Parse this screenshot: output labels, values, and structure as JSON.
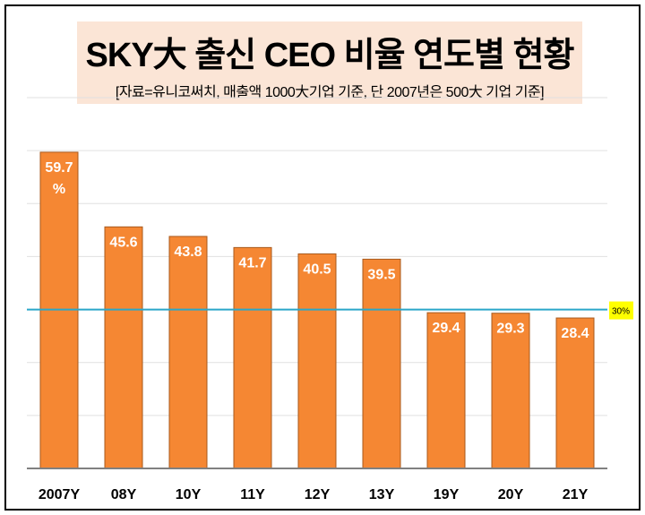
{
  "chart_data": {
    "type": "bar",
    "title": "SKY大 출신 CEO 비율 연도별 현황",
    "subtitle": "[자료=유니코써치, 매출액 1000大기업  기준, 단 2007년은 500大 기업 기준]",
    "categories": [
      "2007Y",
      "08Y",
      "10Y",
      "11Y",
      "12Y",
      "13Y",
      "19Y",
      "20Y",
      "21Y"
    ],
    "values": [
      59.7,
      45.6,
      43.8,
      41.7,
      40.5,
      39.5,
      29.4,
      29.3,
      28.4
    ],
    "data_labels": [
      "59.7 %",
      "45.6",
      "43.8",
      "41.7",
      "40.5",
      "39.5",
      "29.4",
      "29.3",
      "28.4"
    ],
    "ylim": [
      0,
      70
    ],
    "grid": true,
    "reference_line": {
      "value": 30,
      "label": "30%",
      "color": "#2aa7c9"
    },
    "bar_color": "#f58733",
    "label_bg": "#ffff00"
  }
}
